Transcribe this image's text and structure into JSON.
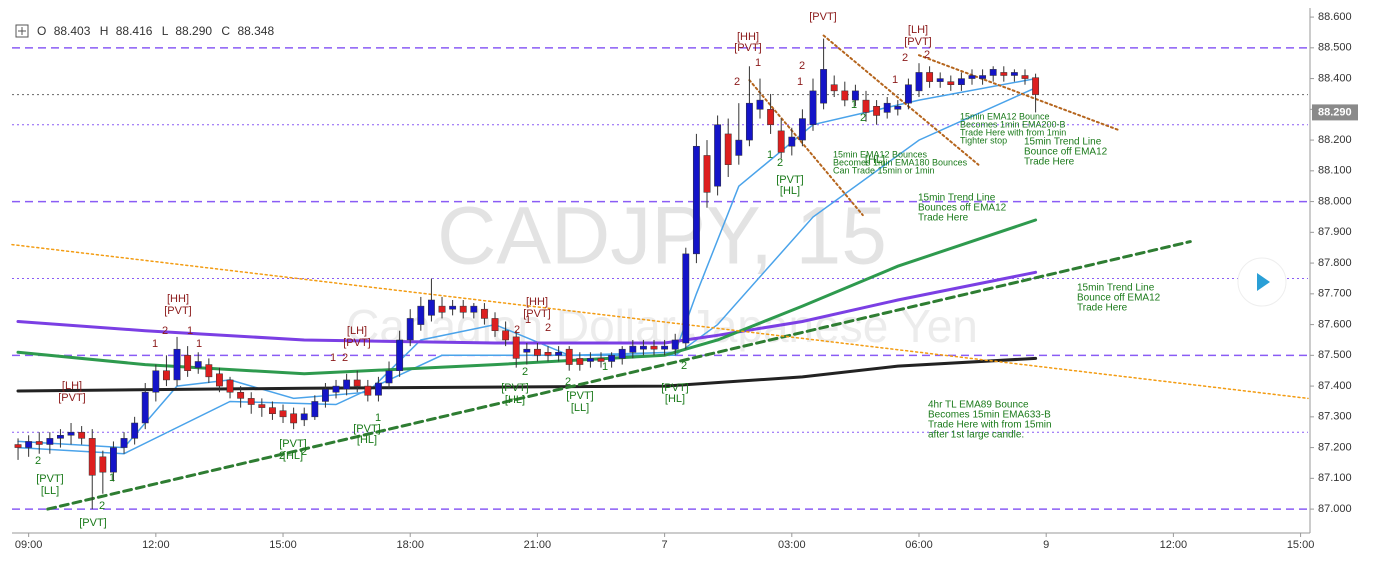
{
  "chart_data": {
    "type": "candlestick",
    "header": {
      "o_label": "O",
      "o": "88.403",
      "h_label": "H",
      "h": "88.416",
      "l_label": "L",
      "l": "88.290",
      "c_label": "C",
      "c": "88.348"
    },
    "watermark": {
      "symbol": "CADJPY, 15",
      "description": "Canadian Dollar/Japanese Yen"
    },
    "up_color": "#1414c8",
    "down_color": "#dd1f1f",
    "open": [
      87.21,
      87.2,
      87.22,
      87.21,
      87.23,
      87.24,
      87.25,
      87.23,
      87.17,
      87.12,
      87.2,
      87.23,
      87.28,
      87.38,
      87.45,
      87.42,
      87.5,
      87.46,
      87.47,
      87.44,
      87.42,
      87.38,
      87.36,
      87.34,
      87.33,
      87.32,
      87.31,
      87.29,
      87.3,
      87.35,
      87.38,
      87.39,
      87.42,
      87.4,
      87.37,
      87.41,
      87.45,
      87.55,
      87.6,
      87.63,
      87.66,
      87.65,
      87.66,
      87.64,
      87.65,
      87.62,
      87.58,
      87.56,
      87.51,
      87.52,
      87.51,
      87.5,
      87.52,
      87.49,
      87.48,
      87.49,
      87.48,
      87.49,
      87.51,
      87.52,
      87.53,
      87.52,
      87.52,
      87.54,
      87.83,
      88.15,
      88.05,
      88.22,
      88.15,
      88.2,
      88.3,
      88.3,
      88.23,
      88.18,
      88.2,
      88.25,
      88.32,
      88.38,
      88.36,
      88.33,
      88.33,
      88.31,
      88.29,
      88.3,
      88.32,
      88.36,
      88.42,
      88.39,
      88.39,
      88.38,
      88.4,
      88.4,
      88.41,
      88.42,
      88.41,
      88.41,
      88.403
    ],
    "high": [
      87.23,
      87.24,
      87.25,
      87.25,
      87.26,
      87.28,
      87.27,
      87.26,
      87.19,
      87.22,
      87.25,
      87.3,
      87.41,
      87.47,
      87.5,
      87.56,
      87.53,
      87.51,
      87.49,
      87.46,
      87.43,
      87.4,
      87.38,
      87.36,
      87.35,
      87.34,
      87.33,
      87.33,
      87.37,
      87.41,
      87.42,
      87.44,
      87.45,
      87.42,
      87.43,
      87.48,
      87.58,
      87.65,
      87.69,
      87.75,
      87.69,
      87.68,
      87.68,
      87.67,
      87.67,
      87.64,
      87.61,
      87.58,
      87.54,
      87.54,
      87.53,
      87.53,
      87.53,
      87.51,
      87.51,
      87.51,
      87.51,
      87.53,
      87.55,
      87.55,
      87.55,
      87.55,
      87.57,
      87.85,
      88.22,
      88.2,
      88.28,
      88.27,
      88.32,
      88.44,
      88.4,
      88.35,
      88.27,
      88.24,
      88.3,
      88.4,
      88.53,
      88.41,
      88.39,
      88.38,
      88.36,
      88.33,
      88.34,
      88.33,
      88.4,
      88.45,
      88.44,
      88.42,
      88.41,
      88.42,
      88.43,
      88.43,
      88.44,
      88.44,
      88.43,
      88.43,
      88.416
    ],
    "low": [
      87.16,
      87.17,
      87.18,
      87.18,
      87.2,
      87.21,
      87.21,
      87.0,
      87.05,
      87.09,
      87.18,
      87.21,
      87.26,
      87.35,
      87.4,
      87.4,
      87.43,
      87.44,
      87.41,
      87.38,
      87.36,
      87.33,
      87.31,
      87.3,
      87.29,
      87.28,
      87.26,
      87.27,
      87.29,
      87.33,
      87.36,
      87.37,
      87.38,
      87.35,
      87.35,
      87.39,
      87.43,
      87.53,
      87.58,
      87.61,
      87.62,
      87.63,
      87.62,
      87.62,
      87.6,
      87.56,
      87.53,
      87.46,
      87.47,
      87.48,
      87.48,
      87.48,
      87.45,
      87.45,
      87.46,
      87.46,
      87.46,
      87.47,
      87.49,
      87.5,
      87.5,
      87.5,
      87.5,
      87.52,
      87.8,
      87.98,
      88.02,
      88.08,
      88.12,
      88.18,
      88.27,
      88.22,
      88.14,
      88.15,
      88.18,
      88.23,
      88.3,
      88.34,
      88.31,
      88.31,
      88.26,
      88.25,
      88.27,
      88.28,
      88.3,
      88.34,
      88.37,
      88.37,
      88.36,
      88.36,
      88.38,
      88.38,
      88.39,
      88.39,
      88.39,
      88.38,
      88.29
    ],
    "close": [
      87.2,
      87.22,
      87.21,
      87.23,
      87.24,
      87.25,
      87.23,
      87.11,
      87.12,
      87.2,
      87.23,
      87.28,
      87.38,
      87.45,
      87.42,
      87.52,
      87.45,
      87.48,
      87.43,
      87.4,
      87.38,
      87.36,
      87.34,
      87.33,
      87.31,
      87.3,
      87.28,
      87.31,
      87.35,
      87.39,
      87.4,
      87.42,
      87.4,
      87.37,
      87.41,
      87.45,
      87.55,
      87.62,
      87.66,
      87.68,
      87.64,
      87.66,
      87.64,
      87.66,
      87.62,
      87.58,
      87.55,
      87.49,
      87.52,
      87.5,
      87.5,
      87.51,
      87.47,
      87.47,
      87.49,
      87.48,
      87.5,
      87.52,
      87.53,
      87.53,
      87.52,
      87.53,
      87.55,
      87.83,
      88.18,
      88.03,
      88.25,
      88.12,
      88.2,
      88.32,
      88.33,
      88.25,
      88.16,
      88.21,
      88.27,
      88.36,
      88.43,
      88.36,
      88.33,
      88.36,
      88.29,
      88.28,
      88.32,
      88.31,
      88.38,
      88.42,
      88.39,
      88.4,
      88.38,
      88.4,
      88.41,
      88.41,
      88.43,
      88.41,
      88.42,
      88.4,
      88.348
    ],
    "xlim": [
      -0.57,
      121.7
    ],
    "xticks": [
      {
        "value": 1,
        "label": "09:00"
      },
      {
        "value": 13,
        "label": "12:00"
      },
      {
        "value": 25,
        "label": "15:00"
      },
      {
        "value": 37,
        "label": "18:00"
      },
      {
        "value": 49,
        "label": "21:00"
      },
      {
        "value": 61,
        "label": "7"
      },
      {
        "value": 73,
        "label": "03:00"
      },
      {
        "value": 85,
        "label": "06:00"
      },
      {
        "value": 97,
        "label": "9"
      },
      {
        "value": 109,
        "label": "12:00"
      },
      {
        "value": 121,
        "label": "15:00"
      }
    ],
    "ylim": [
      86.932,
      88.623
    ],
    "yticks": [
      {
        "value": 87.0,
        "label": "87.000"
      },
      {
        "value": 87.1,
        "label": "87.100"
      },
      {
        "value": 87.2,
        "label": "87.200"
      },
      {
        "value": 87.3,
        "label": "87.300"
      },
      {
        "value": 87.4,
        "label": "87.400"
      },
      {
        "value": 87.5,
        "label": "87.500"
      },
      {
        "value": 87.6,
        "label": "87.600"
      },
      {
        "value": 87.7,
        "label": "87.700"
      },
      {
        "value": 87.8,
        "label": "87.800"
      },
      {
        "value": 87.9,
        "label": "87.900"
      },
      {
        "value": 88.0,
        "label": "88.000"
      },
      {
        "value": 88.1,
        "label": "88.100"
      },
      {
        "value": 88.2,
        "label": "88.200"
      },
      {
        "value": 88.3,
        "label": "88.300"
      },
      {
        "value": 88.4,
        "label": "88.400"
      },
      {
        "value": 88.5,
        "label": "88.500"
      },
      {
        "value": 88.6,
        "label": "88.600"
      }
    ],
    "price_label": {
      "value": 88.29,
      "label": "88.290"
    },
    "levels": [
      {
        "value": 88.5,
        "color": "#8a5cf5",
        "style": "dashed"
      },
      {
        "value": 88.0,
        "color": "#8a5cf5",
        "style": "dashed"
      },
      {
        "value": 87.5,
        "color": "#8a5cf5",
        "style": "dashed"
      },
      {
        "value": 87.0,
        "color": "#8a5cf5",
        "style": "dashed"
      },
      {
        "value": 88.25,
        "color": "#8a5cf5",
        "style": "dotted"
      },
      {
        "value": 87.75,
        "color": "#8a5cf5",
        "style": "dotted"
      },
      {
        "value": 87.25,
        "color": "#8a5cf5",
        "style": "dotted"
      },
      {
        "value": 88.348,
        "color": "#666666",
        "style": "dotted"
      }
    ],
    "lines": [
      {
        "color": "#4aa3ea",
        "width": 1.5,
        "style": "solid",
        "x": [
          0,
          10,
          20,
          30,
          40,
          50,
          62,
          66,
          75,
          85,
          96
        ],
        "values": [
          87.2,
          87.18,
          87.35,
          87.34,
          87.5,
          87.5,
          87.5,
          87.6,
          87.95,
          88.2,
          88.37
        ]
      },
      {
        "color": "#4aa3ea",
        "width": 1.5,
        "style": "solid",
        "x": [
          0,
          10,
          15,
          20,
          26,
          33,
          38,
          45,
          52,
          62,
          64,
          68,
          75,
          85,
          96
        ],
        "values": [
          87.22,
          87.2,
          87.4,
          87.42,
          87.36,
          87.38,
          87.55,
          87.6,
          87.5,
          87.51,
          87.7,
          88.05,
          88.25,
          88.33,
          88.4
        ]
      },
      {
        "color": "#7b3fe4",
        "width": 3,
        "style": "solid",
        "x": [
          0,
          12,
          27,
          45,
          61,
          64,
          66,
          74,
          83,
          96
        ],
        "values": [
          87.61,
          87.58,
          87.55,
          87.54,
          87.54,
          87.555,
          87.565,
          87.61,
          87.68,
          87.77
        ]
      },
      {
        "color": "#2e9a4e",
        "width": 3,
        "style": "solid",
        "x": [
          0,
          12,
          27,
          45,
          61,
          64,
          66,
          74,
          83,
          96
        ],
        "values": [
          87.51,
          87.47,
          87.44,
          87.47,
          87.5,
          87.53,
          87.55,
          87.66,
          87.79,
          87.94
        ]
      },
      {
        "color": "#222222",
        "width": 3,
        "style": "solid",
        "x": [
          0,
          27,
          61,
          74,
          83,
          96
        ],
        "values": [
          87.384,
          87.393,
          87.4,
          87.43,
          87.465,
          87.49
        ]
      },
      {
        "color": "#2e7d32",
        "width": 3,
        "style": "dashed",
        "x": [
          2.8,
          110.6
        ],
        "values": [
          87.0,
          87.87
        ]
      },
      {
        "color": "#f39c12",
        "width": 1.5,
        "style": "dotted",
        "x": [
          -0.57,
          121.7
        ],
        "values": [
          87.86,
          87.36
        ]
      },
      {
        "color": "#b5651d",
        "width": 2,
        "style": "dotted",
        "x": [
          69,
          79.7
        ],
        "values": [
          88.395,
          87.956
        ]
      },
      {
        "color": "#b5651d",
        "width": 2,
        "style": "dotted",
        "x": [
          76,
          90.6
        ],
        "values": [
          88.54,
          88.12
        ]
      },
      {
        "color": "#b5651d",
        "width": 2,
        "style": "dotted",
        "x": [
          85,
          103.8
        ],
        "values": [
          88.476,
          88.233
        ]
      }
    ],
    "annotations": [
      {
        "text": "[LH]",
        "color": "#8b1a1a"
      },
      {
        "text": "[PVT]",
        "color": "#8b1a1a"
      },
      {
        "text": "[HH]",
        "color": "#8b1a1a"
      },
      {
        "text": "[PVT]",
        "color": "#8b1a1a"
      },
      {
        "text": "[LH]",
        "color": "#8b1a1a"
      },
      {
        "text": "[PVT]",
        "color": "#8b1a1a"
      },
      {
        "text": "[HH]",
        "color": "#8b1a1a"
      },
      {
        "text": "[PVT]",
        "color": "#8b1a1a"
      },
      {
        "text": "[HH]",
        "color": "#8b1a1a"
      },
      {
        "text": "[PVT]",
        "color": "#8b1a1a"
      },
      {
        "text": "[PVT]",
        "color": "#8b1a1a"
      },
      {
        "text": "[LH]",
        "color": "#8b1a1a"
      },
      {
        "text": "[PVT]",
        "color": "#8b1a1a"
      },
      {
        "text": "[PVT]",
        "color": "#1a7a1a"
      },
      {
        "text": "[LL]",
        "color": "#1a7a1a"
      },
      {
        "text": "[PVT]",
        "color": "#1a7a1a"
      },
      {
        "text": "[PVT]",
        "color": "#1a7a1a"
      },
      {
        "text": "[HL]",
        "color": "#1a7a1a"
      },
      {
        "text": "[PVT]",
        "color": "#1a7a1a"
      },
      {
        "text": "[HL]",
        "color": "#1a7a1a"
      },
      {
        "text": "[PVT]",
        "color": "#1a7a1a"
      },
      {
        "text": "[HL]",
        "color": "#1a7a1a"
      },
      {
        "text": "[PVT]",
        "color": "#1a7a1a"
      },
      {
        "text": "[LL]",
        "color": "#1a7a1a"
      },
      {
        "text": "[PVT]",
        "color": "#1a7a1a"
      },
      {
        "text": "[HL]",
        "color": "#1a7a1a"
      },
      {
        "text": "[PVT]",
        "color": "#1a7a1a"
      },
      {
        "text": "[HL]",
        "color": "#1a7a1a"
      },
      {
        "text": "[HL]",
        "color": "#1a7a1a"
      },
      {
        "text": "1",
        "color": "#8b1a1a"
      },
      {
        "text": "2",
        "color": "#8b1a1a"
      },
      {
        "text": "1",
        "color": "#8b1a1a"
      },
      {
        "text": "1",
        "color": "#8b1a1a"
      },
      {
        "text": "2",
        "color": "#8b1a1a"
      },
      {
        "text": "1",
        "color": "#8b1a1a"
      },
      {
        "text": "2",
        "color": "#8b1a1a"
      },
      {
        "text": "1",
        "color": "#8b1a1a"
      },
      {
        "text": "2",
        "color": "#8b1a1a"
      },
      {
        "text": "2",
        "color": "#8b1a1a"
      },
      {
        "text": "1",
        "color": "#8b1a1a"
      },
      {
        "text": "2",
        "color": "#8b1a1a"
      },
      {
        "text": "1",
        "color": "#8b1a1a"
      },
      {
        "text": "2",
        "color": "#8b1a1a"
      },
      {
        "text": "1",
        "color": "#8b1a1a"
      },
      {
        "text": "2",
        "color": "#8b1a1a"
      },
      {
        "text": "2",
        "color": "#1a7a1a"
      },
      {
        "text": "1",
        "color": "#1a7a1a"
      },
      {
        "text": "2",
        "color": "#1a7a1a"
      },
      {
        "text": "2",
        "color": "#1a7a1a"
      },
      {
        "text": "2",
        "color": "#1a7a1a"
      },
      {
        "text": "1",
        "color": "#1a7a1a"
      },
      {
        "text": "2",
        "color": "#1a7a1a"
      },
      {
        "text": "2",
        "color": "#1a7a1a"
      },
      {
        "text": "1",
        "color": "#1a7a1a"
      },
      {
        "text": "2",
        "color": "#1a7a1a"
      },
      {
        "text": "1",
        "color": "#1a7a1a"
      },
      {
        "text": "2",
        "color": "#1a7a1a"
      },
      {
        "text": "2",
        "color": "#1a7a1a"
      },
      {
        "text": "1",
        "color": "#1a7a1a"
      }
    ],
    "notes": [
      {
        "lines": [
          "15min EMA12 Bounce",
          "Becomes 1min EMA200-B",
          "Trade Here with from 1min",
          "Tighter stop"
        ]
      },
      {
        "lines": [
          "15min EMA12 Bounces",
          "Becomes 1min EMA180 Bounces",
          "Can Trade 15min or 1min"
        ]
      },
      {
        "lines": [
          "15min Trend Line",
          "Bounce off EMA12",
          "Trade Here"
        ]
      },
      {
        "lines": [
          "15min Trend Line",
          "Bounces off EMA12",
          "Trade Here"
        ]
      },
      {
        "lines": [
          "15min Trend Line",
          "Bounce off EMA12",
          "Trade Here"
        ]
      },
      {
        "lines": [
          "4hr TL EMA89 Bounce",
          "Becomes 15min EMA633-B",
          "Trade Here with from 15min",
          "after 1st large candle."
        ]
      }
    ]
  }
}
